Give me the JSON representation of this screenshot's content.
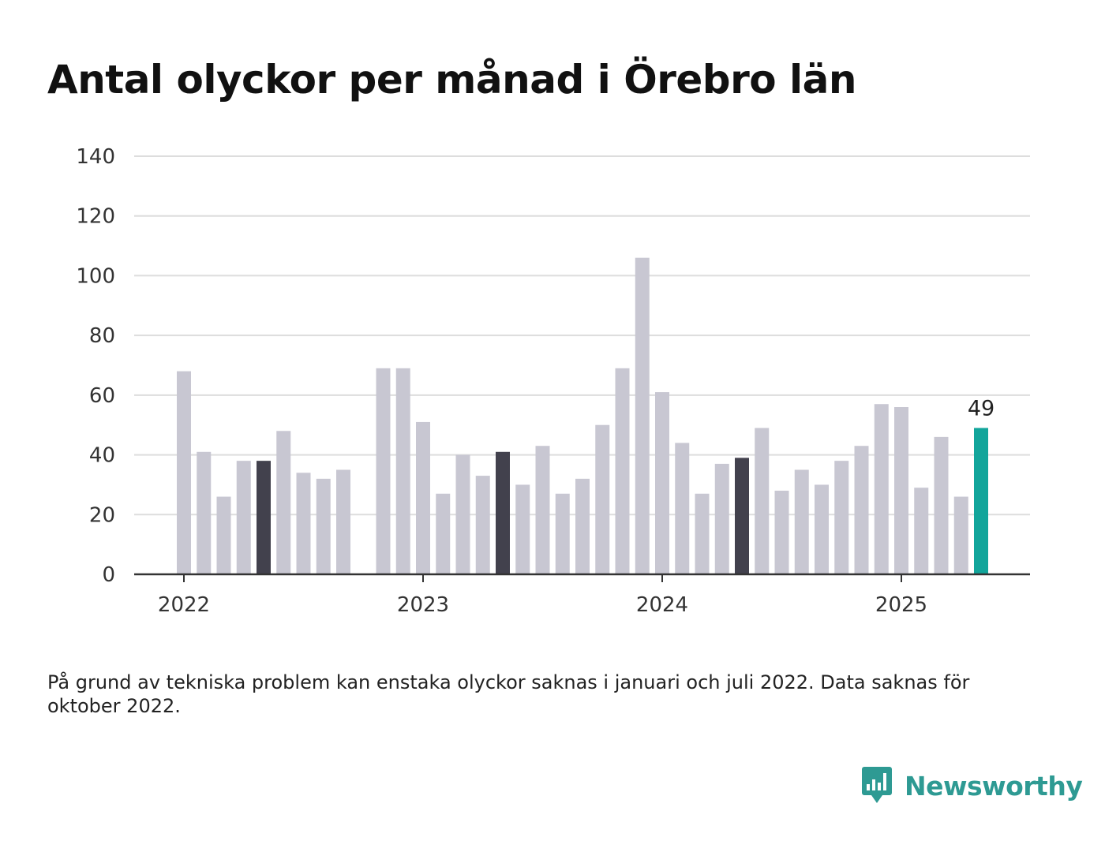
{
  "title": "Antal olyckor per månad i Örebro län",
  "note": "På grund av tekniska problem kan enstaka olyckor saknas i januari och juli 2022. Data saknas för oktober 2022.",
  "brand": {
    "name": "Newsworthy",
    "icon": "newsworthy-logo-icon"
  },
  "colors": {
    "default": "#c8c7d2",
    "highlight": "#42414d",
    "latest": "#12a59b",
    "grid": "#dddddd",
    "axis": "#333333"
  },
  "chart_data": {
    "type": "bar",
    "title": "Antal olyckor per månad i Örebro län",
    "xlabel": "",
    "ylabel": "",
    "ylim": [
      0,
      140
    ],
    "yticks": [
      0,
      20,
      40,
      60,
      80,
      100,
      120,
      140
    ],
    "xtick_labels": [
      "2022",
      "2023",
      "2024",
      "2025"
    ],
    "grid": true,
    "categories": [
      "2022-01",
      "2022-02",
      "2022-03",
      "2022-04",
      "2022-05",
      "2022-06",
      "2022-07",
      "2022-08",
      "2022-09",
      "2022-10",
      "2022-11",
      "2022-12",
      "2023-01",
      "2023-02",
      "2023-03",
      "2023-04",
      "2023-05",
      "2023-06",
      "2023-07",
      "2023-08",
      "2023-09",
      "2023-10",
      "2023-11",
      "2023-12",
      "2024-01",
      "2024-02",
      "2024-03",
      "2024-04",
      "2024-05",
      "2024-06",
      "2024-07",
      "2024-08",
      "2024-09",
      "2024-10",
      "2024-11",
      "2024-12",
      "2025-01",
      "2025-02",
      "2025-03",
      "2025-04",
      "2025-05"
    ],
    "values": [
      68,
      41,
      26,
      38,
      38,
      48,
      34,
      32,
      35,
      null,
      69,
      69,
      51,
      27,
      40,
      33,
      41,
      30,
      43,
      27,
      32,
      50,
      69,
      106,
      61,
      44,
      27,
      37,
      39,
      49,
      28,
      35,
      30,
      38,
      43,
      57,
      56,
      29,
      46,
      26,
      49
    ],
    "highlighted": [
      "2022-05",
      "2023-05",
      "2024-05"
    ],
    "latest": "2025-05",
    "data_label": {
      "category": "2025-05",
      "value": "49"
    }
  }
}
